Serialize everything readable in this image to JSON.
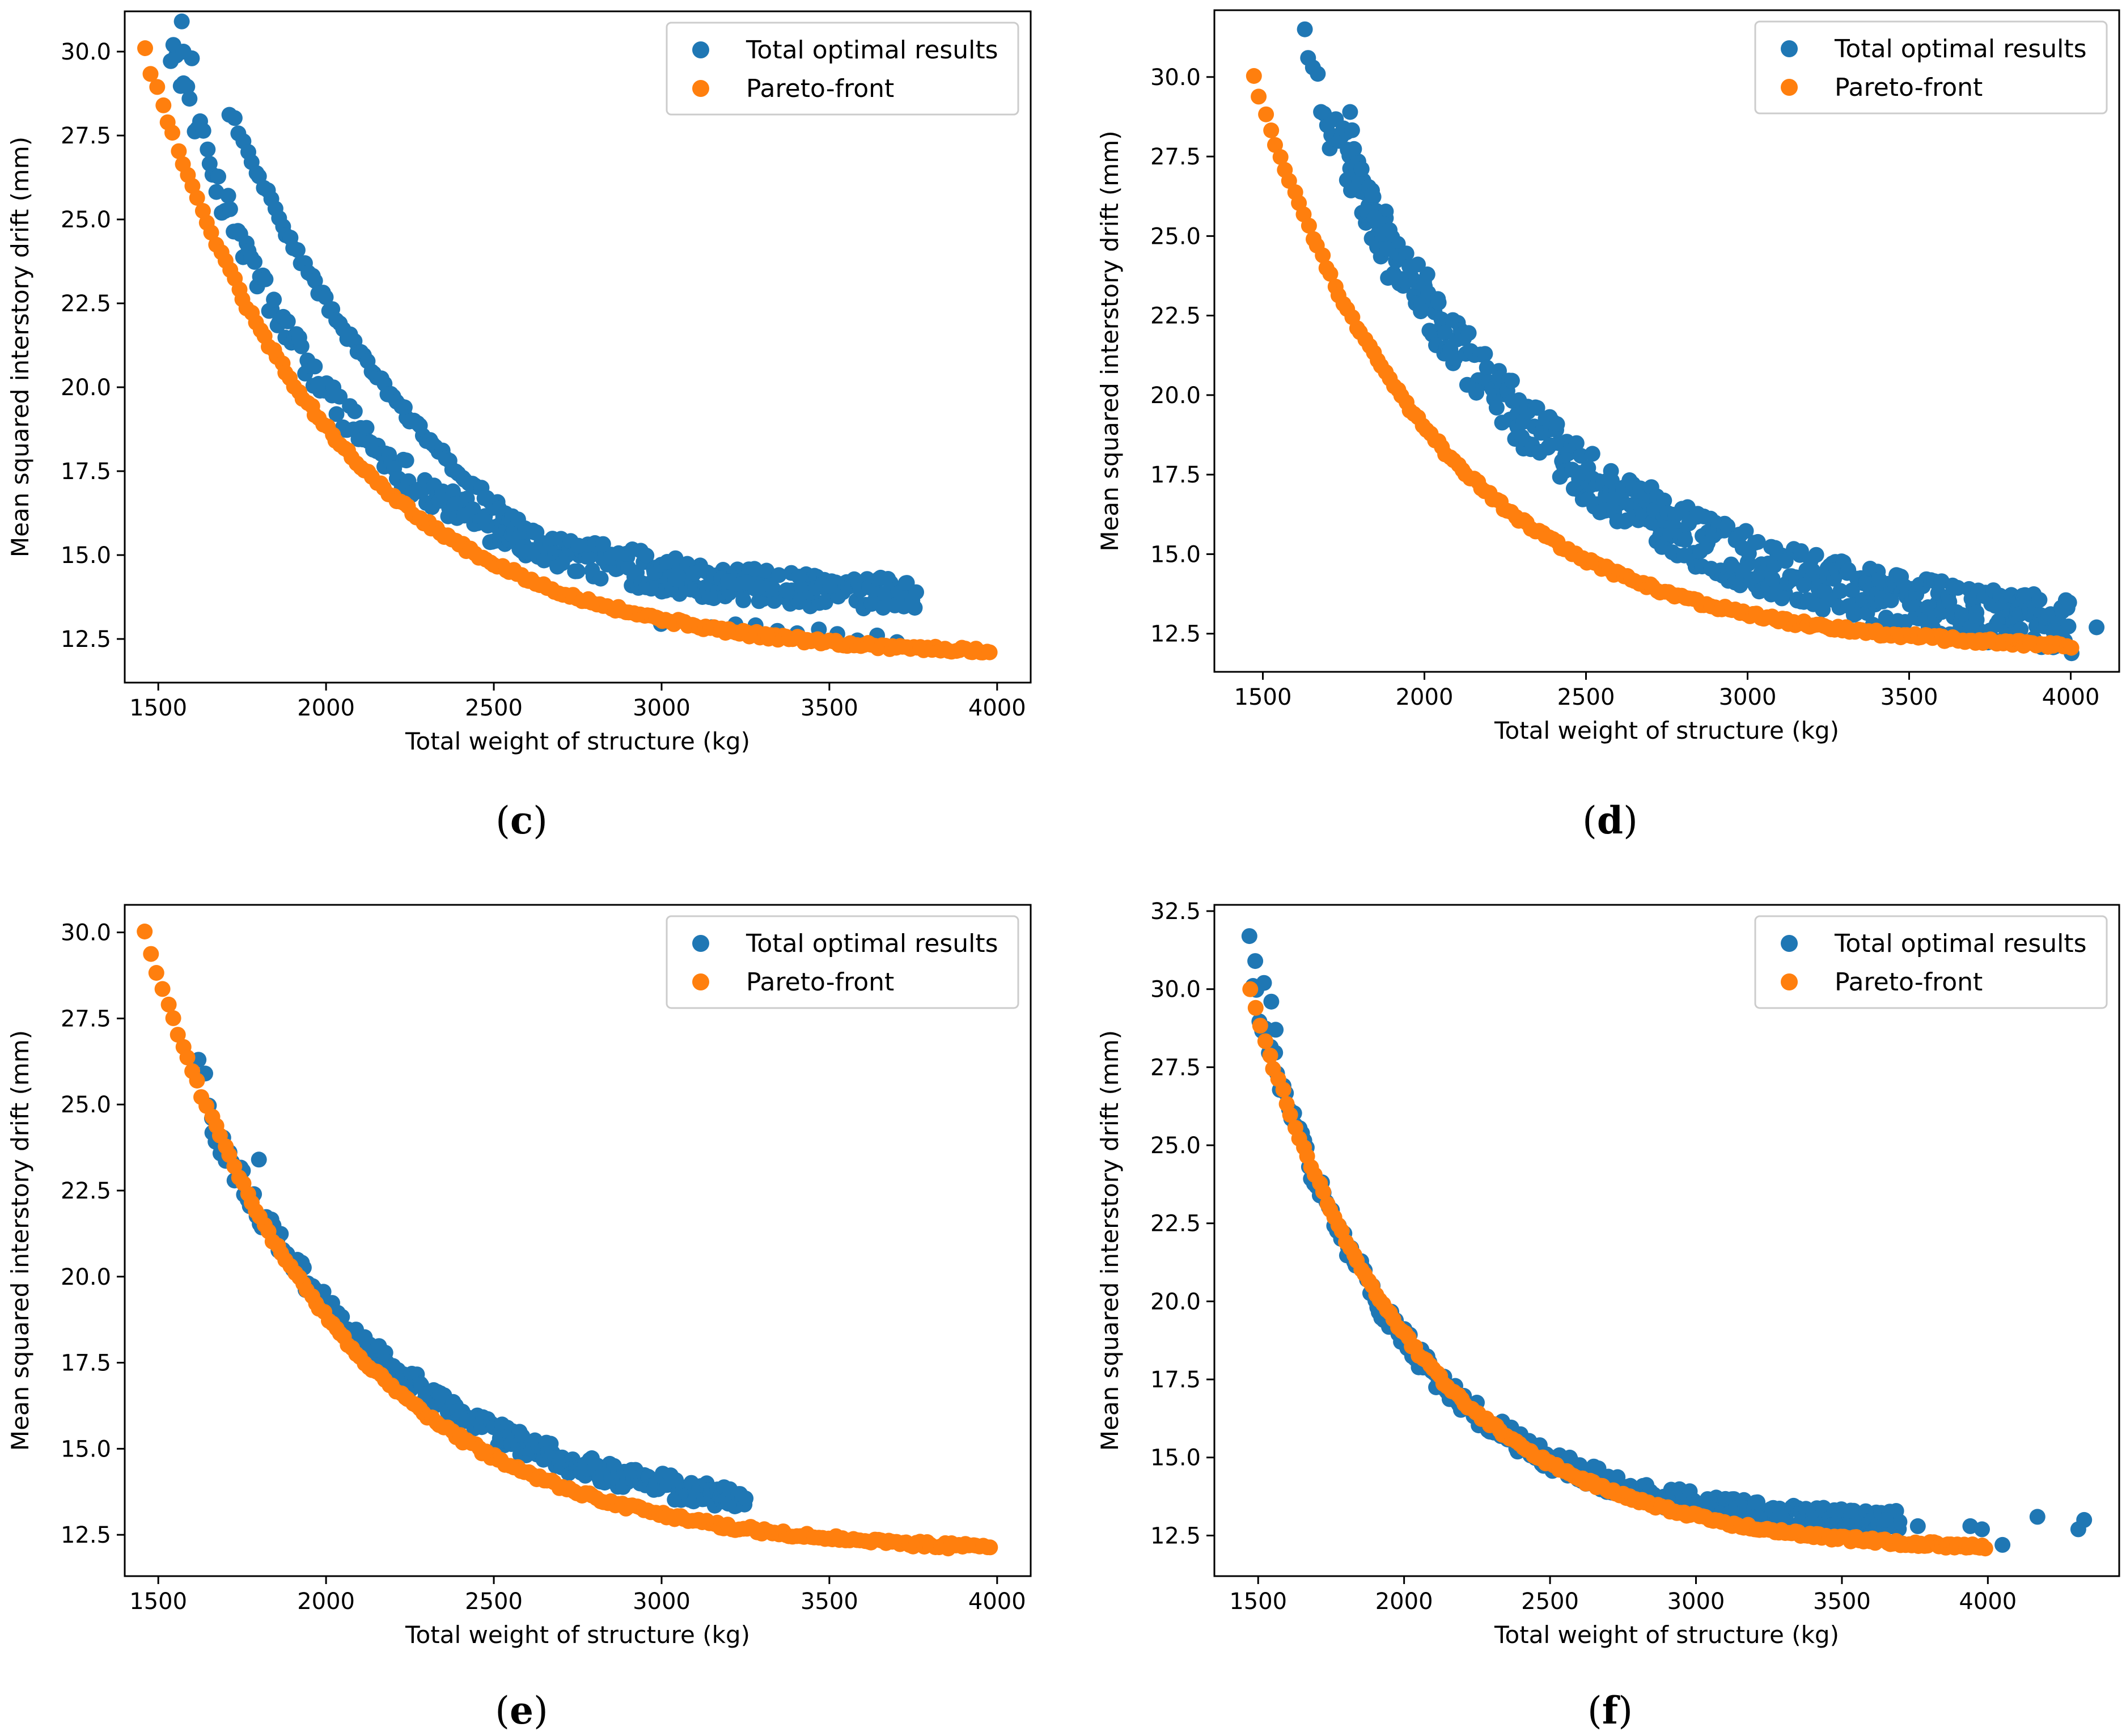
{
  "chart_data": [
    {
      "panel": "c",
      "type": "scatter",
      "caption_open": "(",
      "caption_letter": "c",
      "caption_close": ")",
      "xlabel": "Total weight of structure (kg)",
      "ylabel": "Mean squared interstory drift (mm)",
      "xlim": [
        1400,
        4100
      ],
      "ylim": [
        11.2,
        31.2
      ],
      "xticks": [
        1500,
        2000,
        2500,
        3000,
        3500,
        4000
      ],
      "yticks": [
        12.5,
        15.0,
        17.5,
        20.0,
        22.5,
        25.0,
        27.5,
        30.0
      ],
      "legend": {
        "position": "top-right",
        "entries": [
          "Total optimal results",
          "Pareto-front"
        ]
      },
      "series": [
        {
          "name": "Total optimal results",
          "color": "#1f77b4",
          "bands": [
            {
              "x0": 1540,
              "x1": 3760,
              "y0": 30.0,
              "y1": 13.6,
              "k": 4.7,
              "dy": 0.5,
              "n": 300
            },
            {
              "x0": 1710,
              "x1": 2620,
              "y0": 28.2,
              "y1": 15.5,
              "k": 1.15,
              "dy": 0.15,
              "n": 90
            },
            {
              "x0": 2700,
              "x1": 3500,
              "y0": 15.2,
              "y1": 14.0,
              "k": 1.0,
              "dy": 0.3,
              "n": 40
            },
            {
              "x0": 3000,
              "x1": 3700,
              "y0": 12.9,
              "y1": 12.4,
              "k": 1.0,
              "dy": 0.2,
              "n": 12
            }
          ],
          "points": [
            [
              1570,
              30.9
            ],
            [
              1545,
              30.2
            ],
            [
              1600,
              29.8
            ],
            [
              1575,
              30.0
            ]
          ]
        },
        {
          "name": "Pareto-front",
          "color": "#ff7f0e",
          "bands": [
            {
              "x0": 1460,
              "x1": 3980,
              "y0": 30.0,
              "y1": 12.1,
              "k": 4.5,
              "dy": 0.08,
              "n": 220
            }
          ],
          "points": []
        }
      ]
    },
    {
      "panel": "d",
      "type": "scatter",
      "caption_open": "(",
      "caption_letter": "d",
      "caption_close": ")",
      "xlabel": "Total weight of structure (kg)",
      "ylabel": "Mean squared interstory drift (mm)",
      "xlim": [
        1350,
        4150
      ],
      "ylim": [
        11.3,
        32.1
      ],
      "xticks": [
        1500,
        2000,
        2500,
        3000,
        3500,
        4000
      ],
      "yticks": [
        12.5,
        15.0,
        17.5,
        20.0,
        22.5,
        25.0,
        27.5,
        30.0
      ],
      "legend": {
        "position": "top-right",
        "entries": [
          "Total optimal results",
          "Pareto-front"
        ]
      },
      "series": [
        {
          "name": "Total optimal results",
          "color": "#1f77b4",
          "bands": [
            {
              "x0": 1690,
              "x1": 4000,
              "y0": 28.5,
              "y1": 12.4,
              "k": 3.2,
              "dy": 0.9,
              "n": 520
            },
            {
              "x0": 1760,
              "x1": 1900,
              "y0": 28.0,
              "y1": 24.0,
              "k": 1.0,
              "dy": 0.9,
              "n": 25
            }
          ],
          "points": [
            [
              1630,
              31.5
            ],
            [
              1640,
              30.6
            ],
            [
              1655,
              30.3
            ],
            [
              1670,
              30.1
            ],
            [
              1680,
              28.9
            ],
            [
              1770,
              28.9
            ],
            [
              4080,
              12.7
            ],
            [
              3950,
              12.6
            ]
          ]
        },
        {
          "name": "Pareto-front",
          "color": "#ff7f0e",
          "bands": [
            {
              "x0": 1470,
              "x1": 4000,
              "y0": 30.0,
              "y1": 12.1,
              "k": 4.5,
              "dy": 0.08,
              "n": 220
            }
          ],
          "points": []
        }
      ]
    },
    {
      "panel": "e",
      "type": "scatter",
      "caption_open": "(",
      "caption_letter": "e",
      "caption_close": ")",
      "xlabel": "Total weight of structure (kg)",
      "ylabel": "Mean squared interstory drift (mm)",
      "xlim": [
        1400,
        4100
      ],
      "ylim": [
        11.3,
        30.8
      ],
      "xticks": [
        1500,
        2000,
        2500,
        3000,
        3500,
        4000
      ],
      "yticks": [
        12.5,
        15.0,
        17.5,
        20.0,
        22.5,
        25.0,
        27.5,
        30.0
      ],
      "legend": {
        "position": "top-right",
        "entries": [
          "Total optimal results",
          "Pareto-front"
        ]
      },
      "series": [
        {
          "name": "Total optimal results",
          "color": "#1f77b4",
          "bands": [
            {
              "x0": 1650,
              "x1": 3250,
              "y0": 24.5,
              "y1": 13.4,
              "k": 2.8,
              "dy": 0.35,
              "n": 260
            }
          ],
          "points": [
            [
              1620,
              26.3
            ],
            [
              1640,
              25.9
            ],
            [
              1800,
              23.4
            ],
            [
              1660,
              24.6
            ]
          ]
        },
        {
          "name": "Pareto-front",
          "color": "#ff7f0e",
          "bands": [
            {
              "x0": 1460,
              "x1": 3980,
              "y0": 30.0,
              "y1": 12.1,
              "k": 4.5,
              "dy": 0.08,
              "n": 220
            }
          ],
          "points": []
        }
      ]
    },
    {
      "panel": "f",
      "type": "scatter",
      "caption_open": "(",
      "caption_letter": "f",
      "caption_close": ")",
      "xlabel": "Total weight of structure (kg)",
      "ylabel": "Mean squared interstory drift (mm)",
      "xlim": [
        1350,
        4450
      ],
      "ylim": [
        11.2,
        32.7
      ],
      "xticks": [
        1500,
        2000,
        2500,
        3000,
        3500,
        4000
      ],
      "yticks": [
        12.5,
        15.0,
        17.5,
        20.0,
        22.5,
        25.0,
        27.5,
        30.0,
        32.5
      ],
      "legend": {
        "position": "top-right",
        "entries": [
          "Total optimal results",
          "Pareto-front"
        ]
      },
      "series": [
        {
          "name": "Total optimal results",
          "color": "#1f77b4",
          "bands": [
            {
              "x0": 1480,
              "x1": 3700,
              "y0": 30.0,
              "y1": 12.8,
              "k": 4.5,
              "dy": 0.35,
              "n": 300
            }
          ],
          "points": [
            [
              1470,
              31.7
            ],
            [
              1490,
              30.9
            ],
            [
              1520,
              30.2
            ],
            [
              1545,
              29.6
            ],
            [
              1560,
              28.7
            ],
            [
              3530,
              13.3
            ],
            [
              3650,
              13.0
            ],
            [
              3760,
              12.8
            ],
            [
              3940,
              12.8
            ],
            [
              3980,
              12.7
            ],
            [
              4050,
              12.2
            ],
            [
              4170,
              13.1
            ],
            [
              4310,
              12.7
            ],
            [
              4330,
              13.0
            ]
          ]
        },
        {
          "name": "Pareto-front",
          "color": "#ff7f0e",
          "bands": [
            {
              "x0": 1470,
              "x1": 3990,
              "y0": 30.0,
              "y1": 12.1,
              "k": 4.5,
              "dy": 0.08,
              "n": 220
            }
          ],
          "points": []
        }
      ]
    }
  ]
}
